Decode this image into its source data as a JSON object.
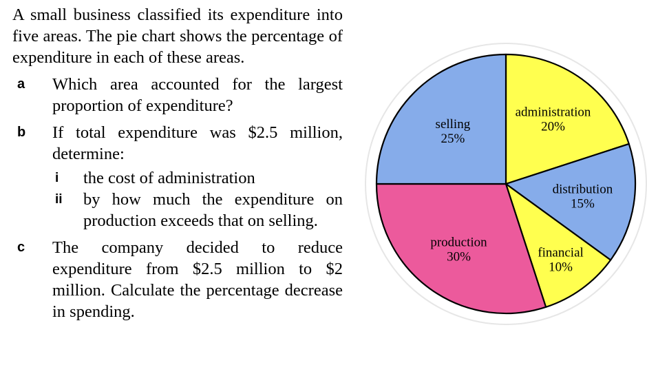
{
  "question": {
    "intro": "A small business classified its expenditure into five areas. The pie chart shows the percentage of expenditure in each of these areas.",
    "parts": [
      {
        "letter": "a",
        "text": "Which area accounted for the largest proportion of expenditure?"
      },
      {
        "letter": "b",
        "text": "If total expenditure was $2.5 million, determine:",
        "subparts": [
          {
            "label": "i",
            "text": "the cost of administration"
          },
          {
            "label": "ii",
            "text": "by how much the expenditure on production exceeds that on selling."
          }
        ]
      },
      {
        "letter": "c",
        "text": "The company decided to reduce expenditure from $2.5 million to $2 million. Calculate the percentage decrease in spending."
      }
    ]
  },
  "chart_data": {
    "type": "pie",
    "title": "",
    "start_angle_deg": 0,
    "direction": "clockwise",
    "slices": [
      {
        "label": "administration",
        "value_label": "20%",
        "value": 20,
        "color": "#ffff4f"
      },
      {
        "label": "distribution",
        "value_label": "15%",
        "value": 15,
        "color": "#86acea"
      },
      {
        "label": "financial",
        "value_label": "10%",
        "value": 10,
        "color": "#ffff4f"
      },
      {
        "label": "production",
        "value_label": "30%",
        "value": 30,
        "color": "#ec5a9c"
      },
      {
        "label": "selling",
        "value_label": "25%",
        "value": 25,
        "color": "#86acea"
      }
    ]
  }
}
